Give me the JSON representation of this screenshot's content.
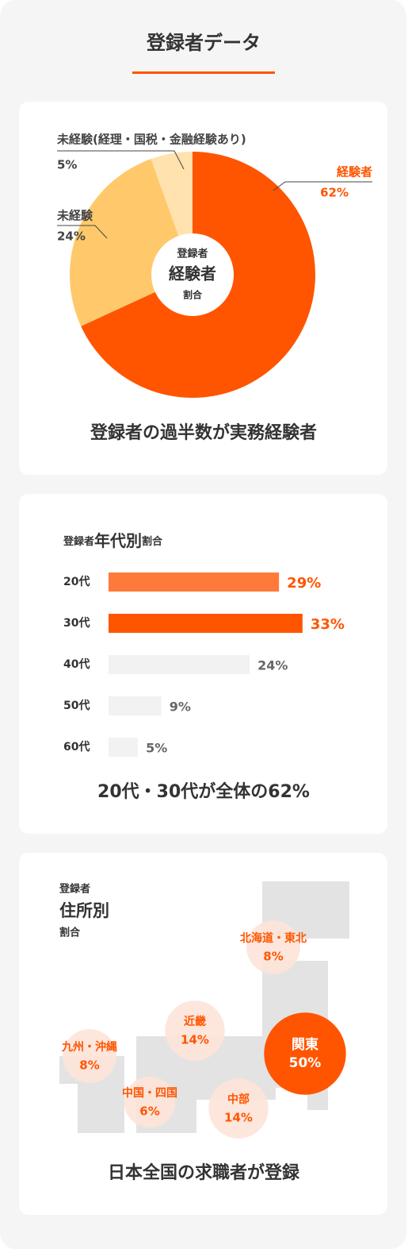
{
  "title": "登録者データ",
  "chart_data": [
    {
      "type": "pie",
      "categories": [
        "経験者",
        "未経験",
        "未経験(経理・国税・金融経験あり)"
      ],
      "values": [
        62,
        24,
        5
      ],
      "value_labels": [
        "62%",
        "24%",
        "5%"
      ],
      "colors": [
        "#ff5500",
        "#ffc96b",
        "#ffe2ad"
      ],
      "center_text": [
        "登録者",
        "経験者",
        "割合"
      ],
      "caption": "登録者の過半数が実務経験者"
    },
    {
      "type": "bar",
      "title": [
        "登録者",
        "年代別",
        "割合"
      ],
      "categories": [
        "20代",
        "30代",
        "40代",
        "50代",
        "60代"
      ],
      "values": [
        29,
        33,
        24,
        9,
        5
      ],
      "value_labels": [
        "29%",
        "33%",
        "24%",
        "9%",
        "5%"
      ],
      "colors": [
        "#ff7a3a",
        "#ff5500",
        "#f2f2f2",
        "#f2f2f2",
        "#f2f2f2"
      ],
      "caption": "20代・30代が全体の62%"
    },
    {
      "type": "bubble",
      "title": [
        "登録者",
        "住所別",
        "割合"
      ],
      "categories": [
        "北海道・東北",
        "近畿",
        "関東",
        "九州・沖縄",
        "中国・四国",
        "中部"
      ],
      "values": [
        8,
        14,
        50,
        8,
        6,
        14
      ],
      "value_labels": [
        "8%",
        "14%",
        "50%",
        "8%",
        "6%",
        "14%"
      ],
      "colors": [
        "#fde3d8",
        "#fde3d8",
        "#ff5500",
        "#fde3d8",
        "#fde3d8",
        "#fde3d8"
      ],
      "caption": "日本全国の求職者が登録"
    }
  ]
}
